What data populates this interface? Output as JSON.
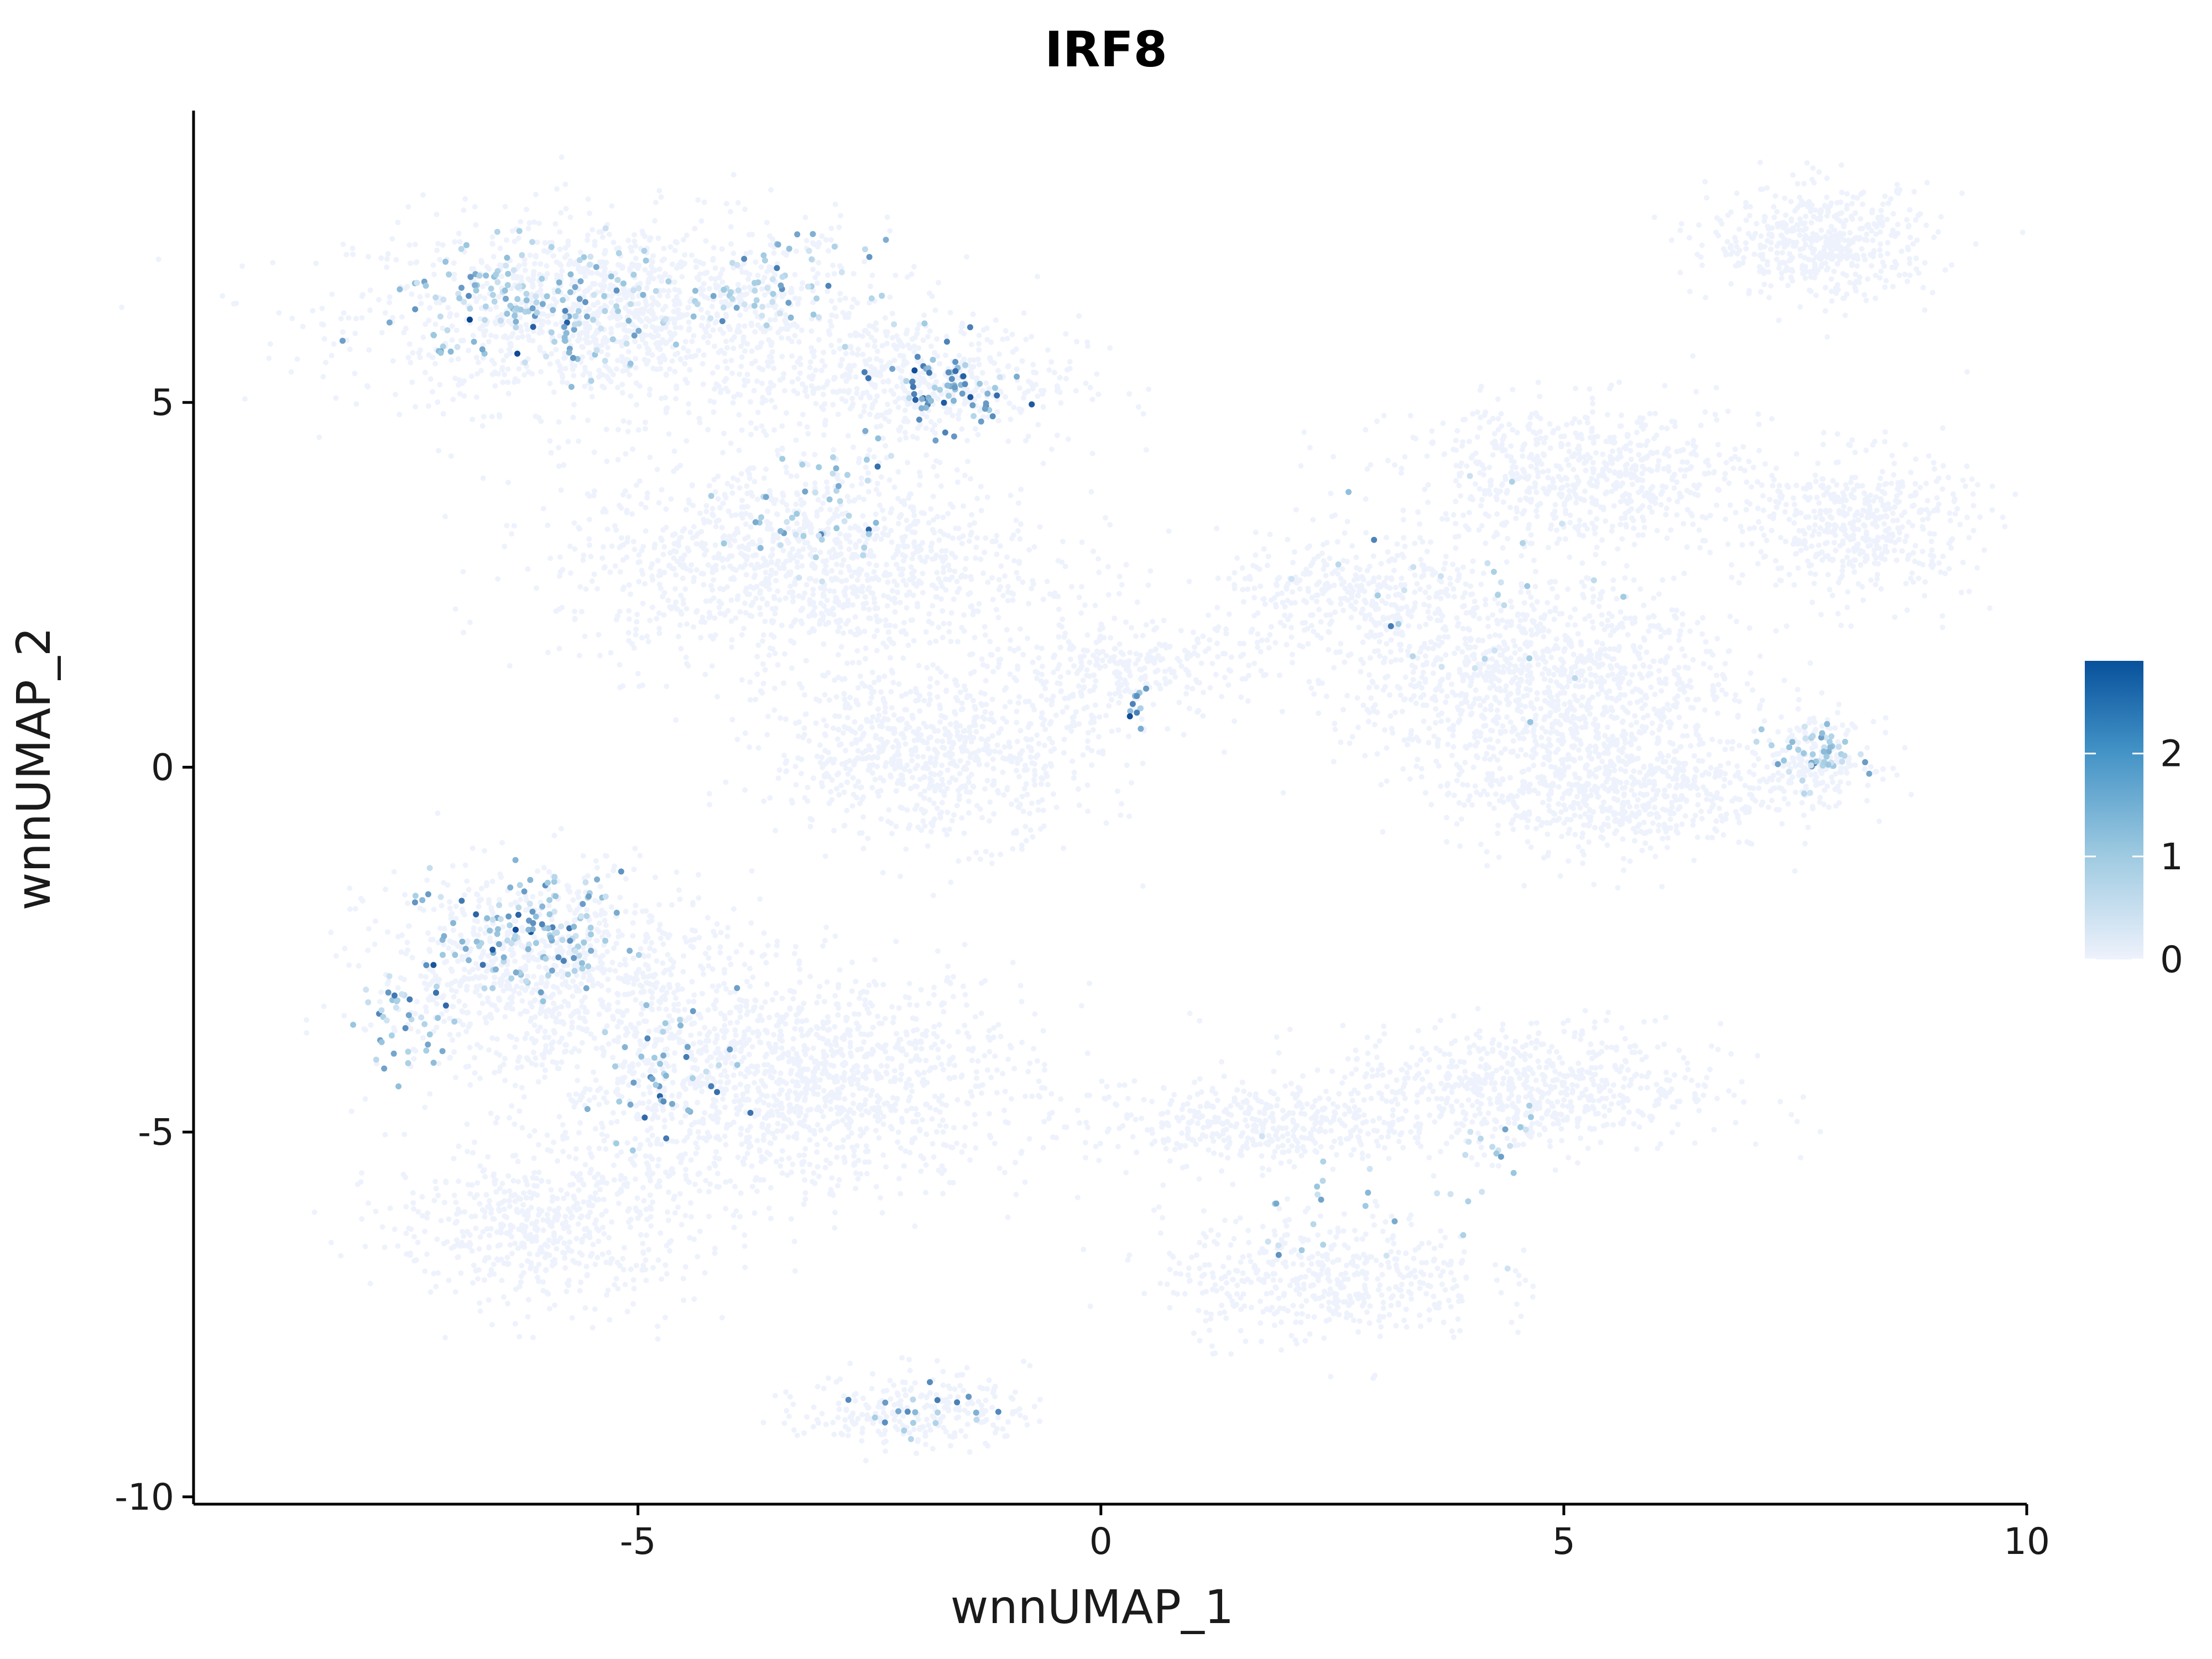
{
  "chart_data": {
    "type": "scatter",
    "title": "IRF8",
    "xlabel": "wnnUMAP_1",
    "ylabel": "wnnUMAP_2",
    "xlim": [
      -9.8,
      10
    ],
    "ylim": [
      -10.1,
      9.0
    ],
    "x_ticks": [
      -5,
      0,
      5,
      10
    ],
    "y_ticks": [
      -10,
      -5,
      0,
      5
    ],
    "x_tick_labels": [
      "-5",
      "0",
      "5",
      "10"
    ],
    "y_tick_labels": [
      "-10",
      "-5",
      "0",
      "5"
    ],
    "grid": false,
    "legend": {
      "placement": "right",
      "type": "colorbar",
      "range": [
        0,
        2.9
      ],
      "ticks": [
        0,
        1,
        2
      ],
      "tick_labels": [
        "0",
        "1",
        "2"
      ]
    },
    "colors": {
      "low": "#eef2fc",
      "mid": "#9ecae1",
      "high": "#084594"
    },
    "background_clusters": [
      {
        "name": "upper-left",
        "x": -5.2,
        "y": 6.2,
        "rx": 2.6,
        "ry": 1.2,
        "n": 1400
      },
      {
        "name": "upper-left-tail",
        "x": -2.0,
        "y": 5.3,
        "rx": 1.6,
        "ry": 0.8,
        "n": 500
      },
      {
        "name": "upper-mid",
        "x": -3.2,
        "y": 2.8,
        "rx": 2.4,
        "ry": 1.3,
        "n": 1300
      },
      {
        "name": "mid-left",
        "x": -1.8,
        "y": 0.2,
        "rx": 1.6,
        "ry": 1.1,
        "n": 800
      },
      {
        "name": "bridge",
        "x": 0.2,
        "y": 1.3,
        "rx": 1.2,
        "ry": 0.6,
        "n": 300
      },
      {
        "name": "right-top",
        "x": 7.8,
        "y": 7.2,
        "rx": 1.1,
        "ry": 0.7,
        "n": 500
      },
      {
        "name": "right-upper",
        "x": 5.2,
        "y": 4.0,
        "rx": 1.8,
        "ry": 0.9,
        "n": 700
      },
      {
        "name": "right-mid",
        "x": 8.2,
        "y": 3.3,
        "rx": 1.1,
        "ry": 0.9,
        "n": 500
      },
      {
        "name": "right-center",
        "x": 4.8,
        "y": 1.2,
        "rx": 1.9,
        "ry": 1.2,
        "n": 1100
      },
      {
        "name": "right-lower",
        "x": 5.5,
        "y": -0.3,
        "rx": 1.6,
        "ry": 0.8,
        "n": 700
      },
      {
        "name": "right-arm",
        "x": 2.8,
        "y": 2.3,
        "rx": 1.4,
        "ry": 0.8,
        "n": 400
      },
      {
        "name": "right-small",
        "x": 7.7,
        "y": 0.1,
        "rx": 0.6,
        "ry": 0.5,
        "n": 200
      },
      {
        "name": "lower-left",
        "x": -6.0,
        "y": -2.8,
        "rx": 1.7,
        "ry": 1.3,
        "n": 900
      },
      {
        "name": "lower-center",
        "x": -3.4,
        "y": -4.3,
        "rx": 2.4,
        "ry": 1.4,
        "n": 1500
      },
      {
        "name": "lower-left-bottom",
        "x": -6.0,
        "y": -6.3,
        "rx": 1.5,
        "ry": 1.0,
        "n": 600
      },
      {
        "name": "lower-small",
        "x": -2.0,
        "y": -8.8,
        "rx": 1.1,
        "ry": 0.5,
        "n": 250
      },
      {
        "name": "lower-right-top",
        "x": 4.6,
        "y": -4.4,
        "rx": 1.9,
        "ry": 0.8,
        "n": 700
      },
      {
        "name": "lower-mid-band",
        "x": 1.6,
        "y": -4.9,
        "rx": 1.6,
        "ry": 0.5,
        "n": 400
      },
      {
        "name": "lower-right-bottom",
        "x": 2.4,
        "y": -7.0,
        "rx": 1.6,
        "ry": 0.8,
        "n": 500
      }
    ],
    "expressing_points": [
      {
        "x": -6.0,
        "y": 6.3,
        "rx": 1.6,
        "ry": 0.8,
        "n": 170,
        "mean": 1.2
      },
      {
        "x": -3.5,
        "y": 6.6,
        "rx": 1.0,
        "ry": 0.6,
        "n": 60,
        "mean": 1.0
      },
      {
        "x": -1.7,
        "y": 5.2,
        "rx": 0.7,
        "ry": 0.6,
        "n": 70,
        "mean": 1.7
      },
      {
        "x": -3.0,
        "y": 3.5,
        "rx": 0.8,
        "ry": 1.2,
        "n": 50,
        "mean": 1.1
      },
      {
        "x": 7.7,
        "y": 0.2,
        "rx": 0.5,
        "ry": 0.4,
        "n": 50,
        "mean": 1.1
      },
      {
        "x": -6.2,
        "y": -2.3,
        "rx": 1.0,
        "ry": 0.8,
        "n": 140,
        "mean": 1.3
      },
      {
        "x": -7.5,
        "y": -3.5,
        "rx": 0.5,
        "ry": 0.8,
        "n": 40,
        "mean": 1.3
      },
      {
        "x": -4.7,
        "y": -4.1,
        "rx": 0.8,
        "ry": 0.9,
        "n": 45,
        "mean": 1.6
      },
      {
        "x": 4.3,
        "y": -5.0,
        "rx": 0.5,
        "ry": 0.5,
        "n": 15,
        "mean": 1.0
      },
      {
        "x": 0.4,
        "y": 0.8,
        "rx": 0.1,
        "ry": 0.3,
        "n": 10,
        "mean": 1.9
      },
      {
        "x": -1.8,
        "y": -8.8,
        "rx": 0.8,
        "ry": 0.3,
        "n": 20,
        "mean": 1.3
      },
      {
        "x": 4.0,
        "y": 2.5,
        "rx": 1.8,
        "ry": 1.5,
        "n": 30,
        "mean": 1.0
      },
      {
        "x": 2.5,
        "y": -6.0,
        "rx": 1.6,
        "ry": 1.0,
        "n": 25,
        "mean": 1.0
      }
    ]
  }
}
